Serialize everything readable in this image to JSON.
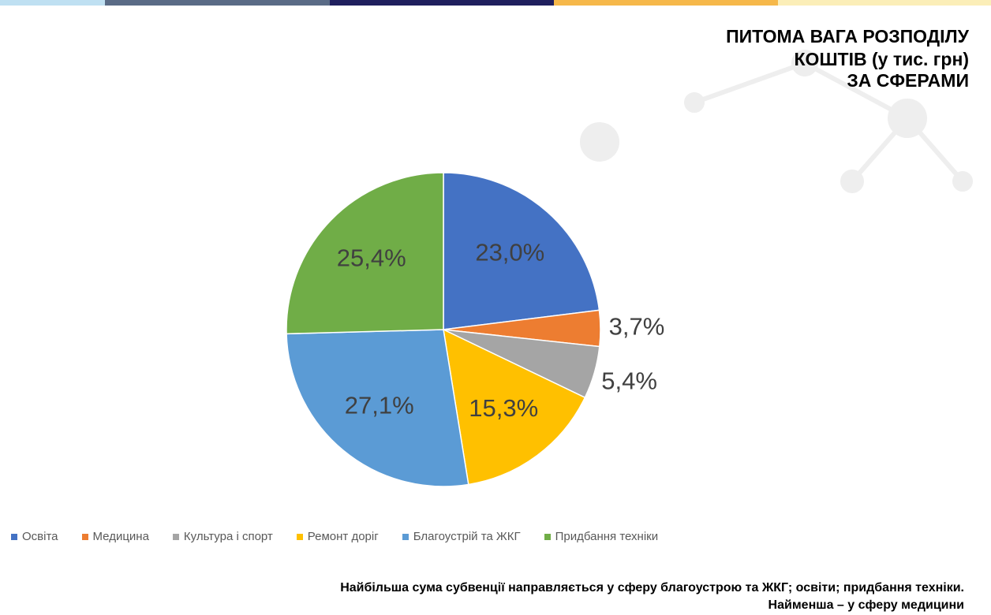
{
  "chart_data": {
    "type": "pie",
    "title": [
      "ПИТОМА ВАГА РОЗПОДІЛУ",
      "КОШТІВ (у тис. грн)",
      "ЗА СФЕРАМИ"
    ],
    "categories": [
      "Освіта",
      "Медицина",
      "Культура і спорт",
      "Ремонт доріг",
      "Благоустрій та ЖКГ",
      "Придбання техніки"
    ],
    "values": [
      23.0,
      3.7,
      5.4,
      15.3,
      27.1,
      25.4
    ],
    "value_labels": [
      "23,0%",
      "3,7%",
      "5,4%",
      "15,3%",
      "27,1%",
      "25,4%"
    ],
    "colors": [
      "#4472c4",
      "#ed7d31",
      "#a5a5a5",
      "#ffc000",
      "#5b9bd5",
      "#70ad47"
    ],
    "legend": "bottom",
    "annotations": [
      "Найбільша сума субвенції направляється у сферу благоустрою та ЖКГ; освіти; придбання техніки.",
      "Найменша – у сферу медицини"
    ]
  }
}
